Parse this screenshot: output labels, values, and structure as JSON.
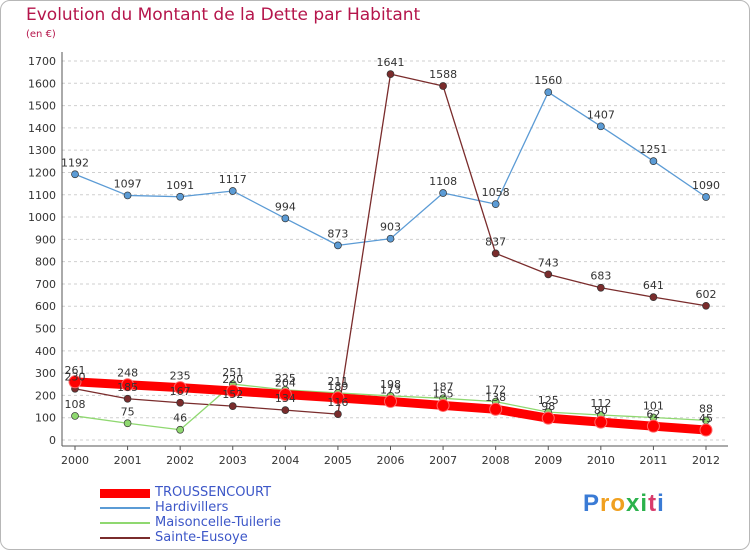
{
  "title": "Evolution du Montant de la Dette par Habitant",
  "subtitle": "(en €)",
  "logo": {
    "letters": [
      "P",
      "r",
      "o",
      "x",
      "i",
      "t",
      "i"
    ],
    "colors": [
      "#3a7bd5",
      "#f0a020",
      "#f0a020",
      "#2bb24c",
      "#2bb24c",
      "#d93b6b",
      "#3a7bd5"
    ]
  },
  "chart_data": {
    "type": "line",
    "x": [
      "2000",
      "2001",
      "2002",
      "2003",
      "2004",
      "2005",
      "2006",
      "2007",
      "2008",
      "2009",
      "2010",
      "2011",
      "2012"
    ],
    "ylim": [
      0,
      1700
    ],
    "yticks": [
      0,
      100,
      200,
      300,
      400,
      500,
      600,
      700,
      800,
      900,
      1000,
      1100,
      1200,
      1300,
      1400,
      1500,
      1600,
      1700
    ],
    "grid": "dashed-horizontal",
    "legend": "bottom-left",
    "series": [
      {
        "name": "TROUSSENCOURT",
        "color": "#ff0000",
        "values": [
          261,
          248,
          235,
          220,
          204,
          189,
          173,
          155,
          138,
          98,
          80,
          62,
          45
        ],
        "labels": [
          "261",
          "248",
          "235",
          "220",
          "204",
          "189",
          "173",
          "155",
          "138",
          "98",
          "80",
          "62",
          "45"
        ]
      },
      {
        "name": "Hardivillers",
        "color": "#5b9bd5",
        "values": [
          1192,
          1097,
          1091,
          1117,
          994,
          873,
          903,
          1108,
          1058,
          1560,
          1407,
          1251,
          1090
        ],
        "labels": [
          "1192",
          "1097",
          "1091",
          "1117",
          "994",
          "873",
          "903",
          "1108",
          "1058",
          "1560",
          "1407",
          "1251",
          "1090"
        ]
      },
      {
        "name": "Maisoncelle-Tuilerie",
        "color": "#8fd870",
        "values": [
          108,
          75,
          46,
          251,
          225,
          211,
          198,
          187,
          172,
          125,
          112,
          101,
          88
        ],
        "labels": [
          "108",
          "75",
          "46",
          "251",
          "225",
          "211",
          "198",
          "187",
          "172",
          "125",
          "112",
          "101",
          "88"
        ]
      },
      {
        "name": "Sainte-Eusoye",
        "color": "#7a2c2c",
        "values": [
          230,
          185,
          167,
          152,
          134,
          116,
          1641,
          1588,
          837,
          743,
          683,
          641,
          602
        ],
        "labels": [
          "230",
          "185",
          "167",
          "152",
          "134",
          "116",
          "1641",
          "1588",
          "837",
          "743",
          "683",
          "641",
          "602"
        ]
      }
    ]
  }
}
